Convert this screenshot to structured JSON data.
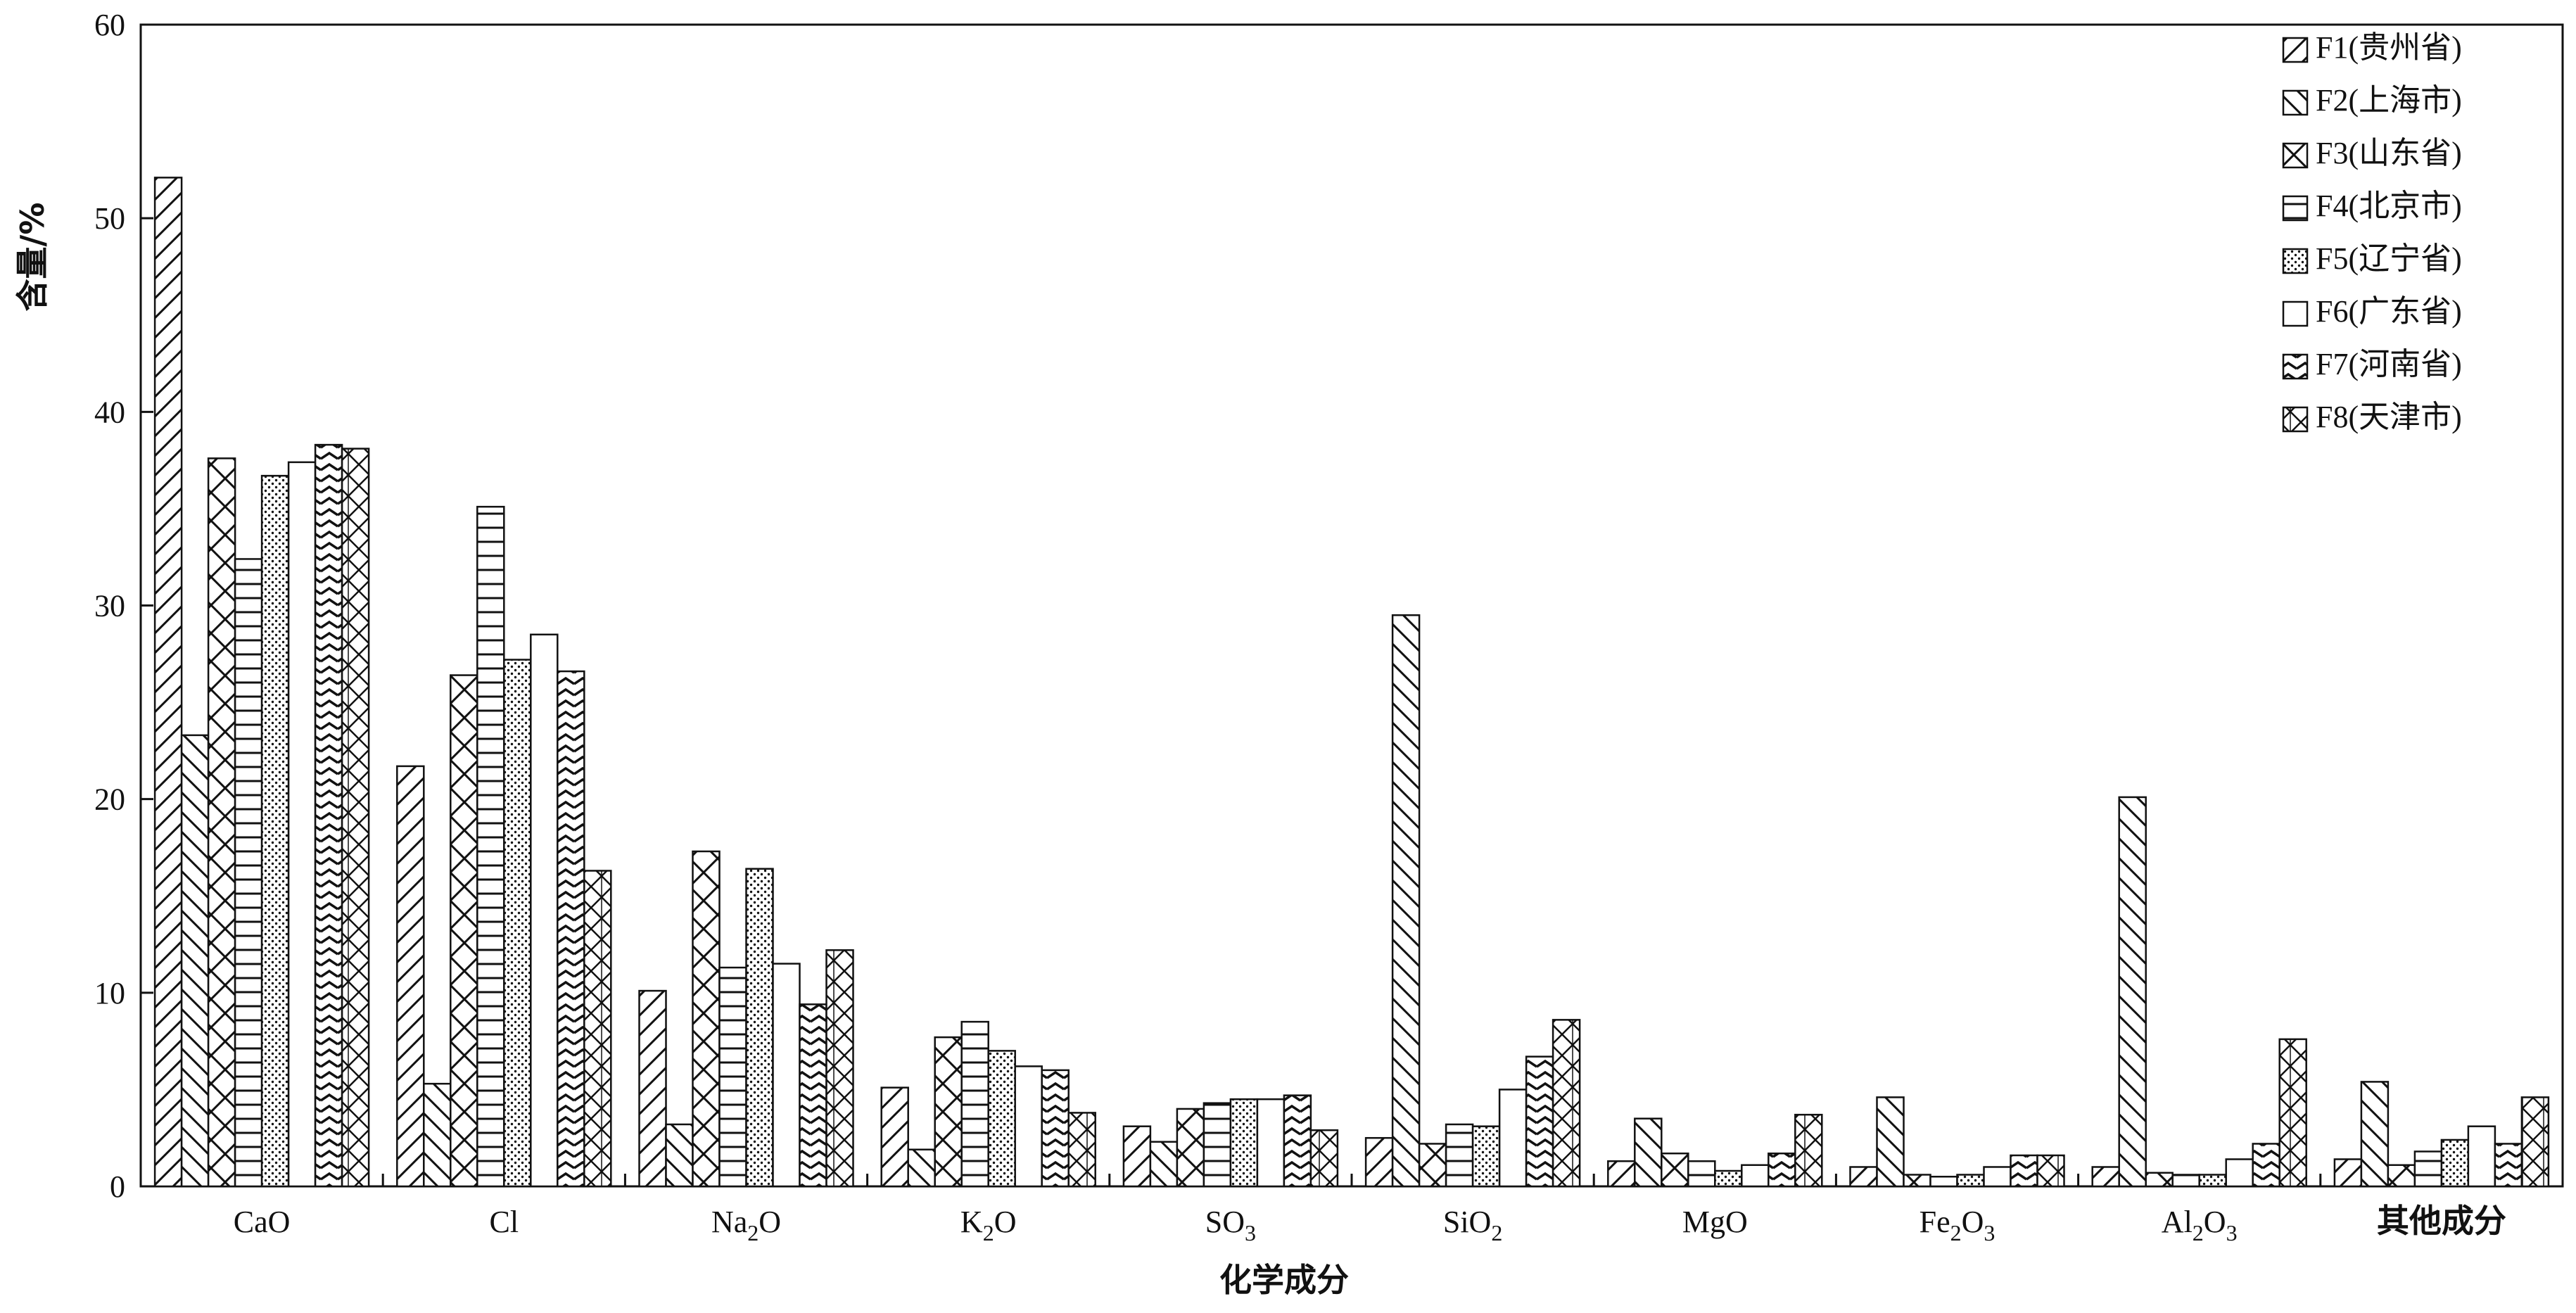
{
  "chart_data": {
    "type": "bar",
    "title": "",
    "xlabel": "化学成分",
    "ylabel": "含量/%",
    "ylim": [
      0,
      60
    ],
    "yticks": [
      0,
      10,
      20,
      30,
      40,
      50,
      60
    ],
    "grid": false,
    "legend_position": "top-right",
    "categories": [
      "CaO",
      "Cl",
      "Na2O",
      "K2O",
      "SO3",
      "SiO2",
      "MgO",
      "Fe2O3",
      "Al2O3",
      "其他成分"
    ],
    "category_labels": [
      {
        "base": "CaO",
        "sub": ""
      },
      {
        "base": "Cl",
        "sub": ""
      },
      {
        "base": "Na",
        "sub": "2",
        "tail": "O"
      },
      {
        "base": "K",
        "sub": "2",
        "tail": "O"
      },
      {
        "base": "SO",
        "sub": "3",
        "tail": ""
      },
      {
        "base": "SiO",
        "sub": "2",
        "tail": ""
      },
      {
        "base": "MgO",
        "sub": ""
      },
      {
        "base": "Fe",
        "sub": "2",
        "tail": "O",
        "sub2": "3"
      },
      {
        "base": "Al",
        "sub": "2",
        "tail": "O",
        "sub2": "3"
      },
      {
        "base": "其他成分",
        "sub": ""
      }
    ],
    "series": [
      {
        "name": "F1(贵州省)",
        "pattern": "diag-fwd",
        "values": [
          52.1,
          21.7,
          10.1,
          5.1,
          3.1,
          2.5,
          1.3,
          1.0,
          1.0,
          1.4
        ]
      },
      {
        "name": "F2(上海市)",
        "pattern": "diag-back",
        "values": [
          23.3,
          5.3,
          3.2,
          1.9,
          2.3,
          29.5,
          3.5,
          4.6,
          20.1,
          5.4
        ]
      },
      {
        "name": "F3(山东省)",
        "pattern": "cross",
        "values": [
          37.6,
          26.4,
          17.3,
          7.7,
          4.0,
          2.2,
          1.7,
          0.6,
          0.7,
          1.1
        ]
      },
      {
        "name": "F4(北京市)",
        "pattern": "horiz",
        "values": [
          32.4,
          35.1,
          11.3,
          8.5,
          4.3,
          3.2,
          1.3,
          0.5,
          0.6,
          1.8
        ]
      },
      {
        "name": "F5(辽宁省)",
        "pattern": "dots",
        "values": [
          36.7,
          27.2,
          16.4,
          7.0,
          4.5,
          3.1,
          0.8,
          0.6,
          0.6,
          2.4
        ]
      },
      {
        "name": "F6(广东省)",
        "pattern": "none",
        "values": [
          37.4,
          28.5,
          11.5,
          6.2,
          4.5,
          5.0,
          1.1,
          1.0,
          1.4,
          3.1
        ]
      },
      {
        "name": "F7(河南省)",
        "pattern": "zigzag",
        "values": [
          38.3,
          26.6,
          9.4,
          6.0,
          4.7,
          6.7,
          1.7,
          1.6,
          2.2,
          2.2
        ]
      },
      {
        "name": "F8(天津市)",
        "pattern": "diamond",
        "values": [
          38.1,
          16.3,
          12.2,
          3.8,
          2.9,
          8.6,
          3.7,
          1.6,
          7.6,
          4.6
        ]
      }
    ]
  }
}
